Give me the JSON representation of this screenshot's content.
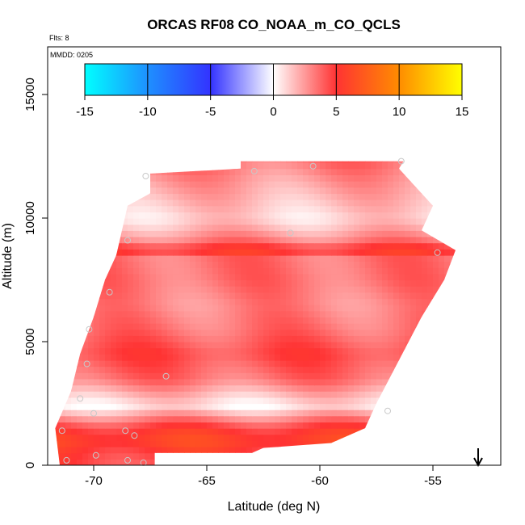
{
  "chart_data": {
    "type": "heatmap",
    "title": "ORCAS RF08 CO_NOAA_m_CO_QCLS",
    "flights_note": "Flts: 8",
    "date_note": "MMDD: 0205",
    "xlabel": "Latitude (deg N)",
    "ylabel": "Altitude (m)",
    "xlim": [
      -72,
      -52
    ],
    "ylim": [
      0,
      17000
    ],
    "xticks": [
      -70,
      -65,
      -60,
      -55
    ],
    "yticks": [
      0,
      5000,
      10000,
      15000
    ],
    "colorbar": {
      "range": [
        -15,
        15
      ],
      "ticks": [
        -15,
        -10,
        -5,
        0,
        5,
        10,
        15
      ],
      "stops": [
        {
          "value": -15,
          "color": "#00ffff"
        },
        {
          "value": -10,
          "color": "#1e90ff"
        },
        {
          "value": -5,
          "color": "#3333ff"
        },
        {
          "value": 0,
          "color": "#ffffff"
        },
        {
          "value": 5,
          "color": "#ff3333"
        },
        {
          "value": 10,
          "color": "#ff8c00"
        },
        {
          "value": 15,
          "color": "#ffff00"
        }
      ]
    },
    "curtain_outline": [
      {
        "lat": -71.3,
        "alt": 0
      },
      {
        "lat": -67.3,
        "alt": 0
      },
      {
        "lat": -67.3,
        "alt": 500
      },
      {
        "lat": -63.0,
        "alt": 500
      },
      {
        "lat": -62.5,
        "alt": 700
      },
      {
        "lat": -59.5,
        "alt": 900
      },
      {
        "lat": -58.0,
        "alt": 1500
      },
      {
        "lat": -57.5,
        "alt": 2500
      },
      {
        "lat": -55.5,
        "alt": 6000
      },
      {
        "lat": -54.5,
        "alt": 7500
      },
      {
        "lat": -54.0,
        "alt": 8700
      },
      {
        "lat": -55.5,
        "alt": 9500
      },
      {
        "lat": -55.0,
        "alt": 10500
      },
      {
        "lat": -56.5,
        "alt": 12000
      },
      {
        "lat": -56.3,
        "alt": 12300
      },
      {
        "lat": -63.5,
        "alt": 12300
      },
      {
        "lat": -63.5,
        "alt": 12000
      },
      {
        "lat": -67.5,
        "alt": 11800
      },
      {
        "lat": -67.5,
        "alt": 11000
      },
      {
        "lat": -68.5,
        "alt": 10500
      },
      {
        "lat": -69.0,
        "alt": 8500
      },
      {
        "lat": -69.5,
        "alt": 7500
      },
      {
        "lat": -70.0,
        "alt": 6000
      },
      {
        "lat": -70.6,
        "alt": 4500
      },
      {
        "lat": -71.0,
        "alt": 3000
      },
      {
        "lat": -71.7,
        "alt": 1500
      },
      {
        "lat": -71.5,
        "alt": 0
      }
    ],
    "altitude_profile": [
      {
        "alt": 0,
        "value": 4.5
      },
      {
        "alt": 500,
        "value": 5
      },
      {
        "alt": 1000,
        "value": 6
      },
      {
        "alt": 1500,
        "value": 5
      },
      {
        "alt": 2000,
        "value": 2.5
      },
      {
        "alt": 2400,
        "value": 0.5
      },
      {
        "alt": 2800,
        "value": 1.5
      },
      {
        "alt": 3500,
        "value": 3.5
      },
      {
        "alt": 4500,
        "value": 4.5
      },
      {
        "alt": 5500,
        "value": 3.5
      },
      {
        "alt": 6500,
        "value": 3
      },
      {
        "alt": 7500,
        "value": 3.5
      },
      {
        "alt": 8500,
        "value": 3.5
      },
      {
        "alt": 8700,
        "value": 6
      },
      {
        "alt": 9000,
        "value": 3.5
      },
      {
        "alt": 9500,
        "value": 2
      },
      {
        "alt": 10000,
        "value": 1
      },
      {
        "alt": 10500,
        "value": 1.5
      },
      {
        "alt": 11500,
        "value": 2.5
      },
      {
        "alt": 12300,
        "value": 3.5
      }
    ],
    "sample_points": [
      {
        "lat": -71.4,
        "alt": 1400
      },
      {
        "lat": -71.2,
        "alt": 200
      },
      {
        "lat": -70.6,
        "alt": 2700
      },
      {
        "lat": -70.3,
        "alt": 4100
      },
      {
        "lat": -70.2,
        "alt": 5500
      },
      {
        "lat": -70.0,
        "alt": 2100
      },
      {
        "lat": -69.9,
        "alt": 400
      },
      {
        "lat": -69.3,
        "alt": 7000
      },
      {
        "lat": -68.6,
        "alt": 1400
      },
      {
        "lat": -68.5,
        "alt": 9100
      },
      {
        "lat": -68.5,
        "alt": 200
      },
      {
        "lat": -68.2,
        "alt": 1200
      },
      {
        "lat": -67.8,
        "alt": 100
      },
      {
        "lat": -67.7,
        "alt": 11700
      },
      {
        "lat": -66.8,
        "alt": 3600
      },
      {
        "lat": -62.9,
        "alt": 11900
      },
      {
        "lat": -61.3,
        "alt": 9400
      },
      {
        "lat": -60.3,
        "alt": 12100
      },
      {
        "lat": -57.0,
        "alt": 2200
      },
      {
        "lat": -56.4,
        "alt": 12300
      },
      {
        "lat": -54.8,
        "alt": 8600
      }
    ],
    "arrow_marker": {
      "lat": -53.0,
      "direction": "down"
    }
  }
}
